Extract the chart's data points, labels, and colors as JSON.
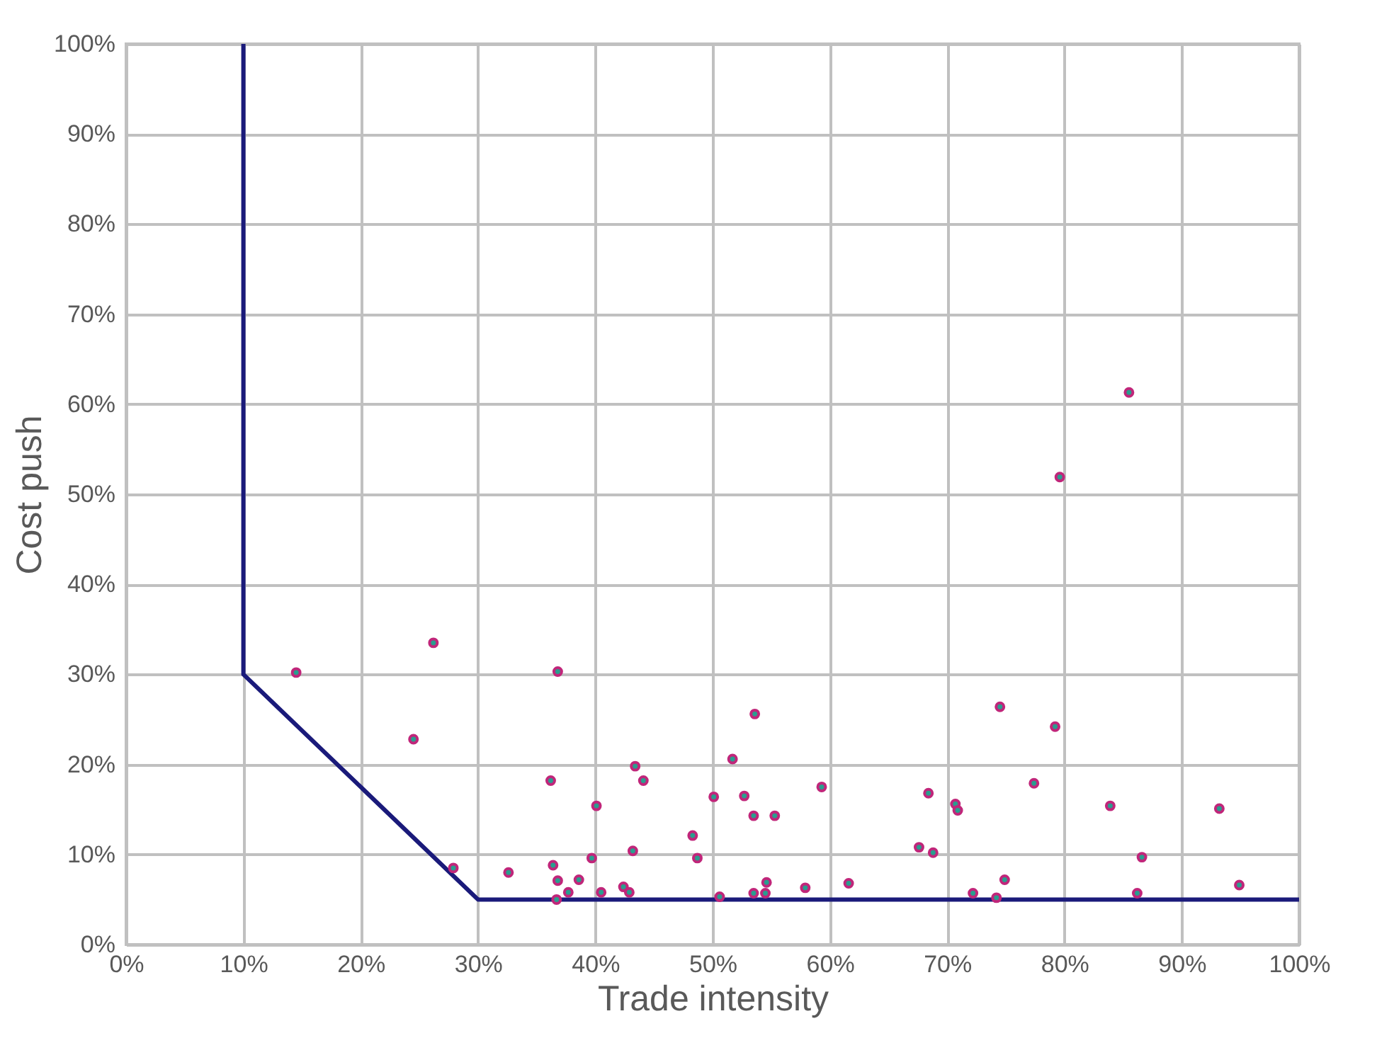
{
  "chart_data": {
    "type": "scatter",
    "xlabel": "Trade intensity",
    "ylabel": "Cost push",
    "xlim": [
      0,
      100
    ],
    "ylim": [
      0,
      100
    ],
    "xticks": [
      {
        "value": 0,
        "label": "0%"
      },
      {
        "value": 10,
        "label": "10%"
      },
      {
        "value": 20,
        "label": "20%"
      },
      {
        "value": 30,
        "label": "30%"
      },
      {
        "value": 40,
        "label": "40%"
      },
      {
        "value": 50,
        "label": "50%"
      },
      {
        "value": 60,
        "label": "60%"
      },
      {
        "value": 70,
        "label": "70%"
      },
      {
        "value": 80,
        "label": "80%"
      },
      {
        "value": 90,
        "label": "90%"
      },
      {
        "value": 100,
        "label": "100%"
      }
    ],
    "yticks": [
      {
        "value": 0,
        "label": "0%"
      },
      {
        "value": 10,
        "label": "10%"
      },
      {
        "value": 20,
        "label": "20%"
      },
      {
        "value": 30,
        "label": "30%"
      },
      {
        "value": 40,
        "label": "40%"
      },
      {
        "value": 50,
        "label": "50%"
      },
      {
        "value": 60,
        "label": "60%"
      },
      {
        "value": 70,
        "label": "70%"
      },
      {
        "value": 80,
        "label": "80%"
      },
      {
        "value": 90,
        "label": "90%"
      },
      {
        "value": 100,
        "label": "100%"
      }
    ],
    "grid": true,
    "series": [
      {
        "type": "line",
        "color": "#1a1a7a",
        "x": [
          10,
          10,
          30,
          100
        ],
        "values": [
          100,
          30,
          5,
          5
        ]
      },
      {
        "marker": "circle",
        "color": "#c0267a",
        "x": [
          14.5,
          24.5,
          26.2,
          27.9,
          32.6,
          36.4,
          36.2,
          36.8,
          36.7,
          36.8,
          37.7,
          38.6,
          39.7,
          40.1,
          40.5,
          42.4,
          42.9,
          43.2,
          43.4,
          44.1,
          48.3,
          48.7,
          50.1,
          50.6,
          51.7,
          52.7,
          53.5,
          53.6,
          53.5,
          54.6,
          54.5,
          55.3,
          57.9,
          59.3,
          61.6,
          67.6,
          68.4,
          68.8,
          70.7,
          70.9,
          72.2,
          74.2,
          74.5,
          74.9,
          77.4,
          79.2,
          79.6,
          83.9,
          85.5,
          86.2,
          86.6,
          93.2,
          94.9
        ],
        "values": [
          30.2,
          22.8,
          33.5,
          8.5,
          8.0,
          8.8,
          18.2,
          30.3,
          5.0,
          7.1,
          5.8,
          7.2,
          9.6,
          15.4,
          5.8,
          6.4,
          5.8,
          10.4,
          19.8,
          18.2,
          12.1,
          9.6,
          16.4,
          5.3,
          20.6,
          16.5,
          14.3,
          25.6,
          5.7,
          6.9,
          5.7,
          14.3,
          6.3,
          17.5,
          6.8,
          10.8,
          16.8,
          10.2,
          15.6,
          14.9,
          5.7,
          5.2,
          26.4,
          7.2,
          17.9,
          24.2,
          51.9,
          15.4,
          61.3,
          5.7,
          9.7,
          15.1,
          6.6
        ]
      }
    ]
  }
}
